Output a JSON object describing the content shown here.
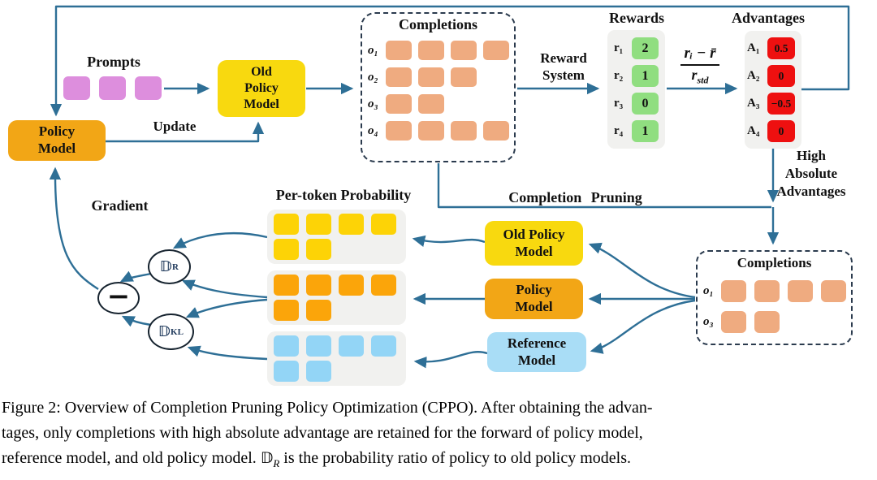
{
  "diagram": {
    "prompts": {
      "label": "Prompts",
      "count": 3
    },
    "policy_model": {
      "line1": "Policy",
      "line2": "Model"
    },
    "old_policy_model": {
      "line1": "Old",
      "line2": "Policy",
      "line3": "Model"
    },
    "update_label": "Update",
    "gradient_label": "Gradient",
    "per_token_label": "Per-token Probability",
    "completion_pruning_label": "Completion Pruning",
    "reward_system": {
      "line1": "Reward",
      "line2": "System"
    },
    "high_absolute": {
      "line1": "High",
      "line2": "Absolute",
      "line3": "Advantages"
    },
    "completions_top": {
      "title": "Completions",
      "rows": [
        {
          "label": "o₁",
          "tokens": 4
        },
        {
          "label": "o₂",
          "tokens": 3
        },
        {
          "label": "o₃",
          "tokens": 2
        },
        {
          "label": "o₄",
          "tokens": 4
        }
      ]
    },
    "rewards": {
      "title": "Rewards",
      "rows": [
        {
          "label": "r₁",
          "value": "2"
        },
        {
          "label": "r₂",
          "value": "1"
        },
        {
          "label": "r₃",
          "value": "0"
        },
        {
          "label": "r₄",
          "value": "1"
        }
      ]
    },
    "formula": {
      "numerator": "rᵢ − r̄",
      "den_base": "r",
      "den_sub": "std"
    },
    "advantages": {
      "title": "Advantages",
      "rows": [
        {
          "label": "A₁",
          "value": "0.5"
        },
        {
          "label": "A₂",
          "value": "0"
        },
        {
          "label": "A₃",
          "value": "−0.5"
        },
        {
          "label": "A₄",
          "value": "0"
        }
      ]
    },
    "prob_grids": {
      "old_policy_row1": 4,
      "old_policy_row2": 2,
      "policy_row1": 4,
      "policy_row2": 2,
      "reference_row1": 4,
      "reference_row2": 2
    },
    "models": {
      "old_policy": {
        "line1": "Old Policy",
        "line2": "Model"
      },
      "policy": {
        "line1": "Policy",
        "line2": "Model"
      },
      "reference": {
        "line1": "Reference",
        "line2": "Model"
      }
    },
    "operators": {
      "ratio": {
        "base": "𝔻",
        "sub": "R"
      },
      "kl": {
        "base": "𝔻",
        "sub": "KL"
      },
      "minus": "−"
    },
    "completions_bottom": {
      "title": "Completions",
      "rows": [
        {
          "label": "o₁",
          "tokens": 4
        },
        {
          "label": "o₃",
          "tokens": 2
        }
      ]
    },
    "colors": {
      "arrow": "#2e6f96",
      "prompt_purple": "#dd8edd",
      "policy_orange": "#f2a616",
      "old_policy_yellow": "#f8d90f",
      "completion_salmon": "#efab80",
      "reward_green": "#90de80",
      "advantage_red": "#ee1010",
      "reference_blue": "#a9ddf6",
      "grid_yellow": "#fdd306",
      "grid_orange": "#fba50a",
      "grid_blue": "#93d5f6",
      "panel_gray": "#f1f1ef",
      "operator_navy": "#203a5c"
    }
  },
  "caption": {
    "line1": "Figure 2: Overview of Completion Pruning Policy Optimization (CPPO). After obtaining the advan-",
    "line2": "tages, only completions with high absolute advantage are retained for the forward of policy model,",
    "line3_before": "reference model, and old policy model. ",
    "line3_symbol": "𝔻",
    "line3_sub": "R",
    "line3_after": " is the probability ratio of policy to old policy models."
  }
}
